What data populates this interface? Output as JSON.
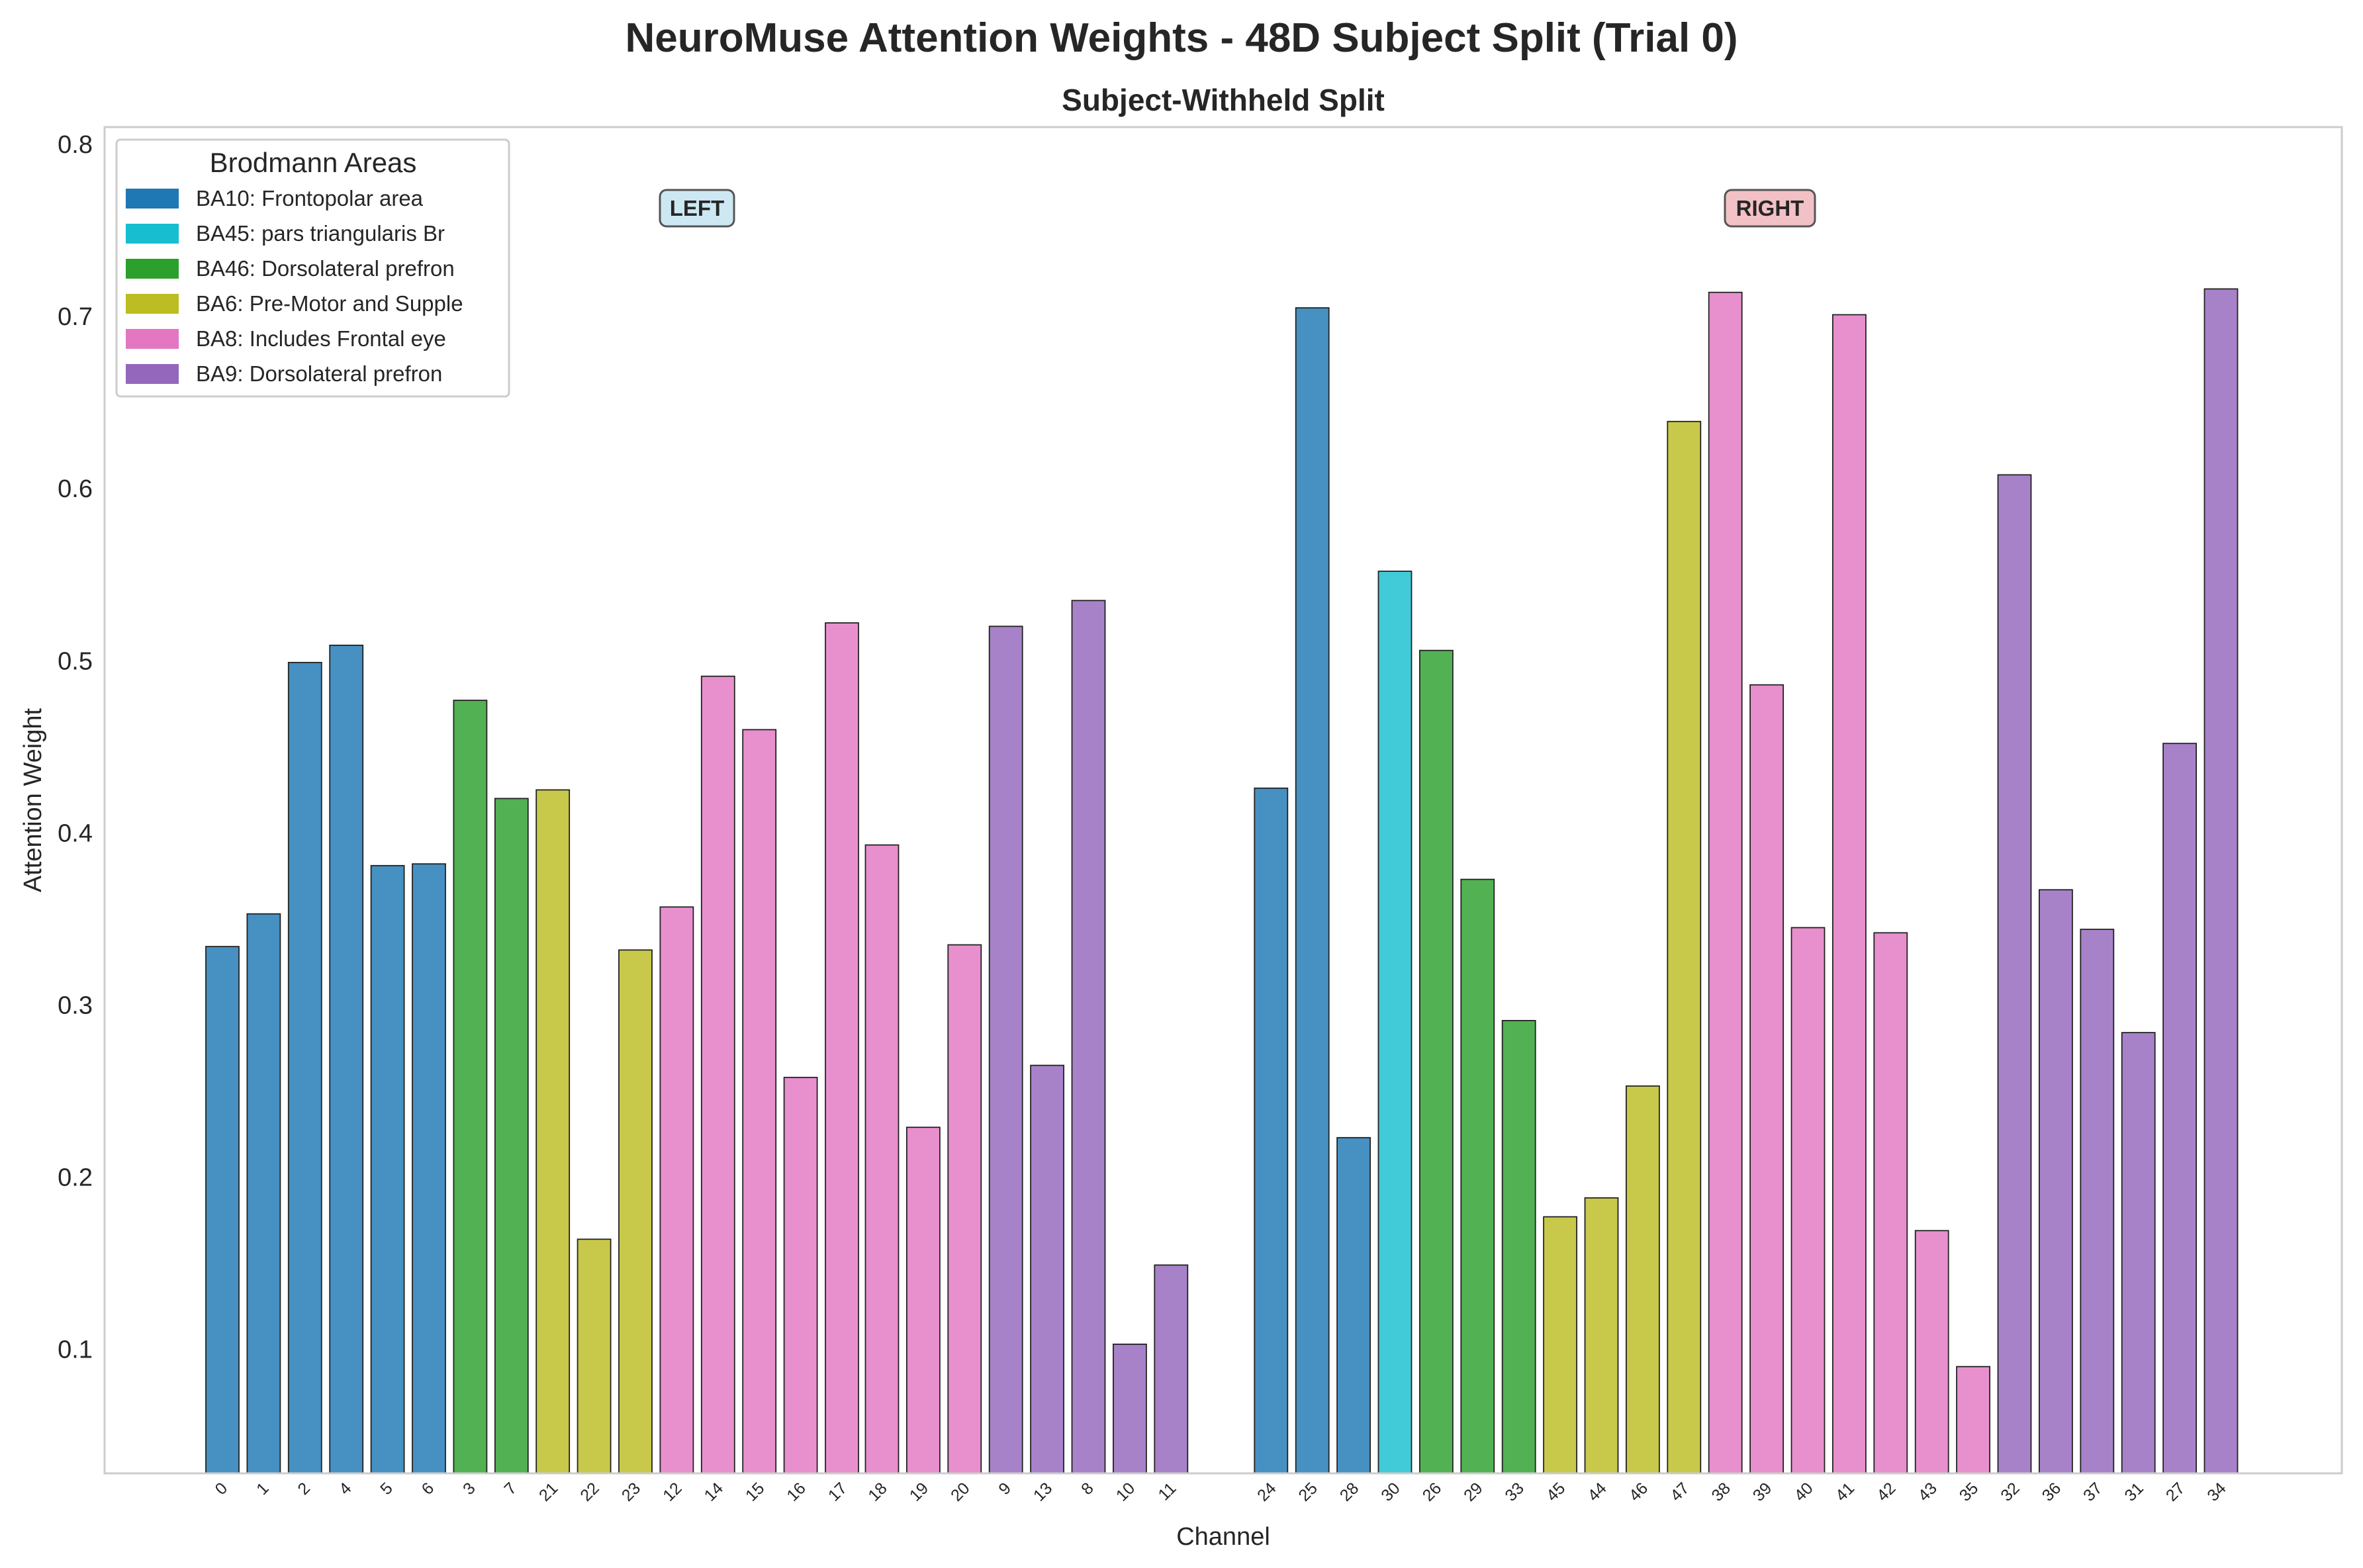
{
  "chart_data": {
    "type": "bar",
    "title": "NeuroMuse Attention Weights - 48D Subject Split (Trial 0)",
    "subtitle": "Subject-Withheld Split",
    "xlabel": "Channel",
    "ylabel": "Attention Weight",
    "ylim": [
      0.028,
      0.81
    ],
    "yticks": [
      "0.1",
      "0.2",
      "0.3",
      "0.4",
      "0.5",
      "0.6",
      "0.7",
      "0.8"
    ],
    "grid": false,
    "legend": {
      "title": "Brodmann Areas",
      "placement": "top-left",
      "entries": [
        {
          "area": "BA10",
          "label": "BA10: Frontopolar area",
          "color": "#1f77b4"
        },
        {
          "area": "BA45",
          "label": "BA45: pars triangularis Br",
          "color": "#17becf"
        },
        {
          "area": "BA46",
          "label": "BA46: Dorsolateral prefron",
          "color": "#2ca02c"
        },
        {
          "area": "BA6",
          "label": "BA6: Pre-Motor and Supple",
          "color": "#bcbd22"
        },
        {
          "area": "BA8",
          "label": "BA8: Includes Frontal eye",
          "color": "#e377c2"
        },
        {
          "area": "BA9",
          "label": "BA9: Dorsolateral prefron",
          "color": "#9467bd"
        }
      ]
    },
    "hemisphere_labels": {
      "left": {
        "text": "LEFT",
        "color": "#cde8f2"
      },
      "right": {
        "text": "RIGHT",
        "color": "#f2c1c6"
      }
    },
    "categories": [
      "0",
      "1",
      "2",
      "4",
      "5",
      "6",
      "3",
      "7",
      "21",
      "22",
      "23",
      "12",
      "14",
      "15",
      "16",
      "17",
      "18",
      "19",
      "20",
      "9",
      "13",
      "8",
      "10",
      "11",
      "24",
      "25",
      "28",
      "30",
      "26",
      "29",
      "33",
      "45",
      "44",
      "46",
      "47",
      "38",
      "39",
      "40",
      "41",
      "42",
      "43",
      "35",
      "32",
      "36",
      "37",
      "31",
      "27",
      "34"
    ],
    "positions": [
      0,
      1,
      2,
      3,
      4,
      5,
      6,
      7,
      8,
      9,
      10,
      11,
      12,
      13,
      14,
      15,
      15.97,
      16.97,
      17.97,
      18.97,
      19.97,
      20.97,
      21.97,
      22.97,
      25.39,
      26.39,
      27.39,
      28.39,
      29.39,
      30.39,
      31.39,
      32.39,
      33.39,
      34.39,
      35.39,
      36.39,
      37.39,
      38.39,
      39.39,
      40.39,
      41.39,
      42.39,
      43.39,
      44.39,
      45.39,
      46.39,
      47.39,
      48.39
    ],
    "values": [
      0.334,
      0.353,
      0.499,
      0.509,
      0.381,
      0.382,
      0.477,
      0.42,
      0.425,
      0.164,
      0.332,
      0.357,
      0.491,
      0.46,
      0.258,
      0.522,
      0.393,
      0.229,
      0.335,
      0.52,
      0.265,
      0.535,
      0.103,
      0.149,
      0.426,
      0.705,
      0.223,
      0.552,
      0.506,
      0.373,
      0.291,
      0.177,
      0.188,
      0.253,
      0.639,
      0.714,
      0.486,
      0.345,
      0.701,
      0.342,
      0.169,
      0.09,
      0.608,
      0.367,
      0.344,
      0.284,
      0.452,
      0.716
    ],
    "areas": [
      "BA10",
      "BA10",
      "BA10",
      "BA10",
      "BA10",
      "BA10",
      "BA46",
      "BA46",
      "BA6",
      "BA6",
      "BA6",
      "BA8",
      "BA8",
      "BA8",
      "BA8",
      "BA8",
      "BA8",
      "BA8",
      "BA8",
      "BA9",
      "BA9",
      "BA9",
      "BA9",
      "BA9",
      "BA10",
      "BA10",
      "BA10",
      "BA45",
      "BA46",
      "BA46",
      "BA46",
      "BA6",
      "BA6",
      "BA6",
      "BA6",
      "BA8",
      "BA8",
      "BA8",
      "BA8",
      "BA8",
      "BA8",
      "BA8",
      "BA9",
      "BA9",
      "BA9",
      "BA9",
      "BA9",
      "BA9"
    ]
  }
}
